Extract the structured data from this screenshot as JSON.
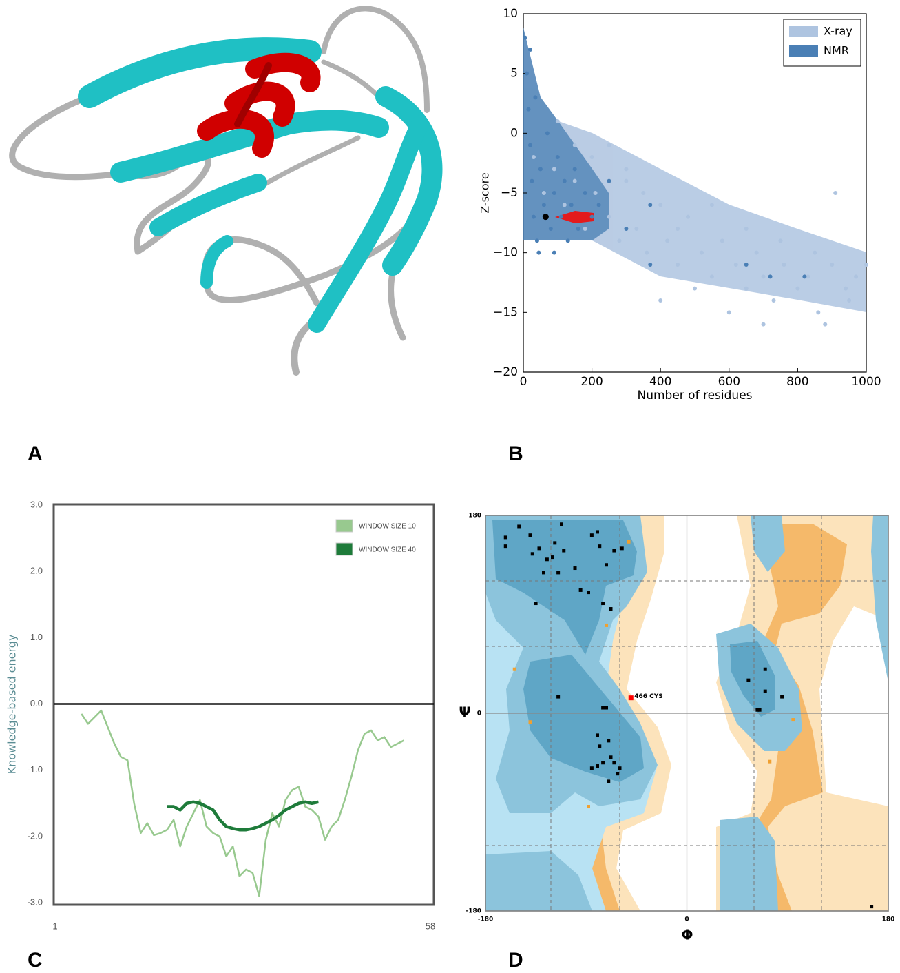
{
  "panel_labels": [
    "A",
    "B",
    "C",
    "D"
  ],
  "chart_data": [
    {
      "type": "scatter",
      "xlabel": "Number of residues",
      "ylabel": "Z-score",
      "xlim": [
        0,
        1000
      ],
      "ylim": [
        -20,
        10
      ],
      "xticks": [
        0,
        200,
        400,
        600,
        800,
        1000
      ],
      "yticks": [
        {
          "value": -20,
          "label": "−20"
        },
        {
          "value": -15,
          "label": "−15"
        },
        {
          "value": -10,
          "label": "−10"
        },
        {
          "value": -5,
          "label": "−5"
        },
        0,
        5,
        10
      ],
      "legend": "upper right",
      "series": [
        {
          "name": "X-ray",
          "color": "#aec4e0",
          "x": [
            30,
            60,
            90,
            120,
            150,
            180,
            210,
            250,
            280,
            300,
            330,
            360,
            400,
            420,
            450,
            480,
            520,
            550,
            580,
            620,
            650,
            680,
            700,
            730,
            760,
            800,
            830,
            860,
            900,
            910,
            940,
            970,
            1000,
            400,
            500,
            600,
            700,
            200,
            250,
            300,
            150,
            100,
            350,
            450,
            550,
            650,
            750,
            850,
            950,
            880
          ],
          "values": [
            -2,
            -5,
            -3,
            -6,
            -4,
            -8,
            -5,
            -7,
            -9,
            -4,
            -8,
            -10,
            -6,
            -9,
            -11,
            -7,
            -10,
            -12,
            -9,
            -11,
            -13,
            -10,
            -12,
            -14,
            -11,
            -13,
            -12,
            -15,
            -11,
            -5,
            -13,
            -12,
            -11,
            -14,
            -13,
            -15,
            -16,
            -2,
            -1,
            -3,
            -1,
            1,
            -5,
            -8,
            -6,
            -8,
            -9,
            -10,
            -14,
            -16
          ]
        },
        {
          "name": "NMR",
          "color": "#4a7fb5",
          "x": [
            5,
            10,
            15,
            20,
            25,
            30,
            40,
            50,
            60,
            70,
            80,
            90,
            100,
            110,
            120,
            130,
            140,
            150,
            160,
            180,
            200,
            220,
            250,
            300,
            370,
            370,
            650,
            720,
            820,
            20,
            35,
            45,
            90
          ],
          "values": [
            8,
            5,
            2,
            -1,
            -4,
            -7,
            -9,
            -3,
            -6,
            0,
            -8,
            -5,
            -2,
            -7,
            -4,
            -9,
            -6,
            -3,
            -8,
            -5,
            -7,
            -6,
            -4,
            -8,
            -11,
            -6,
            -11,
            -12,
            -12,
            7,
            3,
            -10,
            -10
          ]
        }
      ],
      "highlight": {
        "x": 65,
        "y": -7,
        "color": "#000000"
      }
    },
    {
      "type": "line",
      "ylabel": "Knowledge-based energy",
      "xlim": [
        1,
        58
      ],
      "xticks": [
        1,
        58
      ],
      "ylim": [
        -3,
        3
      ],
      "yticks": [
        {
          "value": -3,
          "label": "-3.0"
        },
        {
          "value": -2,
          "label": "-2.0"
        },
        {
          "value": -1,
          "label": "-1.0"
        },
        {
          "value": 0,
          "label": "0.0"
        },
        {
          "value": 1,
          "label": "1.0"
        },
        {
          "value": 2,
          "label": "2.0"
        },
        {
          "value": 3,
          "label": "3.0"
        }
      ],
      "legend": "upper right",
      "series": [
        {
          "name": "WINDOW SIZE 10",
          "color": "#98c98f",
          "x": [
            5,
            6,
            7,
            8,
            9,
            10,
            11,
            12,
            13,
            14,
            15,
            16,
            17,
            18,
            19,
            20,
            21,
            22,
            23,
            24,
            25,
            26,
            27,
            28,
            29,
            30,
            31,
            32,
            33,
            34,
            35,
            36,
            37,
            38,
            39,
            40,
            41,
            42,
            43,
            44,
            45,
            46,
            47,
            48,
            49,
            50,
            51,
            52,
            53,
            54
          ],
          "values": [
            -0.15,
            -0.3,
            -0.2,
            -0.1,
            -0.35,
            -0.6,
            -0.8,
            -0.85,
            -1.5,
            -1.95,
            -1.8,
            -1.98,
            -1.95,
            -1.9,
            -1.75,
            -2.15,
            -1.85,
            -1.65,
            -1.45,
            -1.85,
            -1.95,
            -2.0,
            -2.3,
            -2.15,
            -2.6,
            -2.5,
            -2.55,
            -2.9,
            -2.05,
            -1.65,
            -1.85,
            -1.45,
            -1.3,
            -1.25,
            -1.55,
            -1.6,
            -1.7,
            -2.05,
            -1.85,
            -1.75,
            -1.45,
            -1.1,
            -0.7,
            -0.45,
            -0.4,
            -0.55,
            -0.5,
            -0.65,
            -0.6,
            -0.55
          ]
        },
        {
          "name": "WINDOW SIZE 40",
          "color": "#1e7b3a",
          "x": [
            18,
            19,
            20,
            21,
            22,
            23,
            24,
            25,
            26,
            27,
            28,
            29,
            30,
            31,
            32,
            33,
            34,
            35,
            36,
            37,
            38,
            39,
            40,
            41
          ],
          "values": [
            -1.55,
            -1.55,
            -1.6,
            -1.5,
            -1.48,
            -1.5,
            -1.55,
            -1.6,
            -1.75,
            -1.85,
            -1.88,
            -1.9,
            -1.9,
            -1.88,
            -1.85,
            -1.8,
            -1.75,
            -1.68,
            -1.6,
            -1.55,
            -1.5,
            -1.48,
            -1.5,
            -1.48
          ]
        }
      ]
    },
    {
      "type": "scatter",
      "xlabel": "Φ",
      "ylabel": "Ψ",
      "xlim": [
        -180,
        180
      ],
      "ylim": [
        -180,
        180
      ],
      "xticks": [
        {
          "value": -180,
          "label": "-180"
        },
        0,
        180
      ],
      "yticks": [
        {
          "value": -180,
          "label": "-180"
        },
        0,
        180
      ],
      "series": [
        {
          "color": "#000000",
          "x": [
            -162,
            -162,
            -150,
            -140,
            -138,
            -132,
            -128,
            -125,
            -120,
            -118,
            -115,
            -112,
            -110,
            -100,
            -95,
            -88,
            -85,
            -80,
            -78,
            -72,
            -65,
            -58,
            -75,
            -68,
            -135,
            -115,
            -75,
            -72,
            -80,
            -78,
            -70,
            -68,
            -85,
            -80,
            -65,
            -60,
            -70,
            -62,
            -75,
            70,
            55,
            70,
            85,
            63,
            65,
            165
          ],
          "values": [
            160,
            152,
            170,
            162,
            145,
            150,
            128,
            140,
            142,
            155,
            128,
            172,
            148,
            132,
            112,
            110,
            162,
            165,
            152,
            135,
            148,
            150,
            100,
            95,
            100,
            15,
            5,
            5,
            -20,
            -30,
            -25,
            -40,
            -50,
            -48,
            -45,
            -50,
            -62,
            -55,
            -45,
            40,
            30,
            20,
            15,
            3,
            3,
            -176
          ]
        },
        {
          "color": "#f0a030",
          "x": [
            -52,
            -72,
            -154,
            -140,
            -88,
            95,
            74
          ],
          "values": [
            156,
            80,
            40,
            -8,
            -85,
            -6,
            -44
          ]
        }
      ],
      "highlight": {
        "x": -50,
        "y": 14,
        "color": "#ff0000",
        "label": "466 CYS"
      }
    }
  ]
}
